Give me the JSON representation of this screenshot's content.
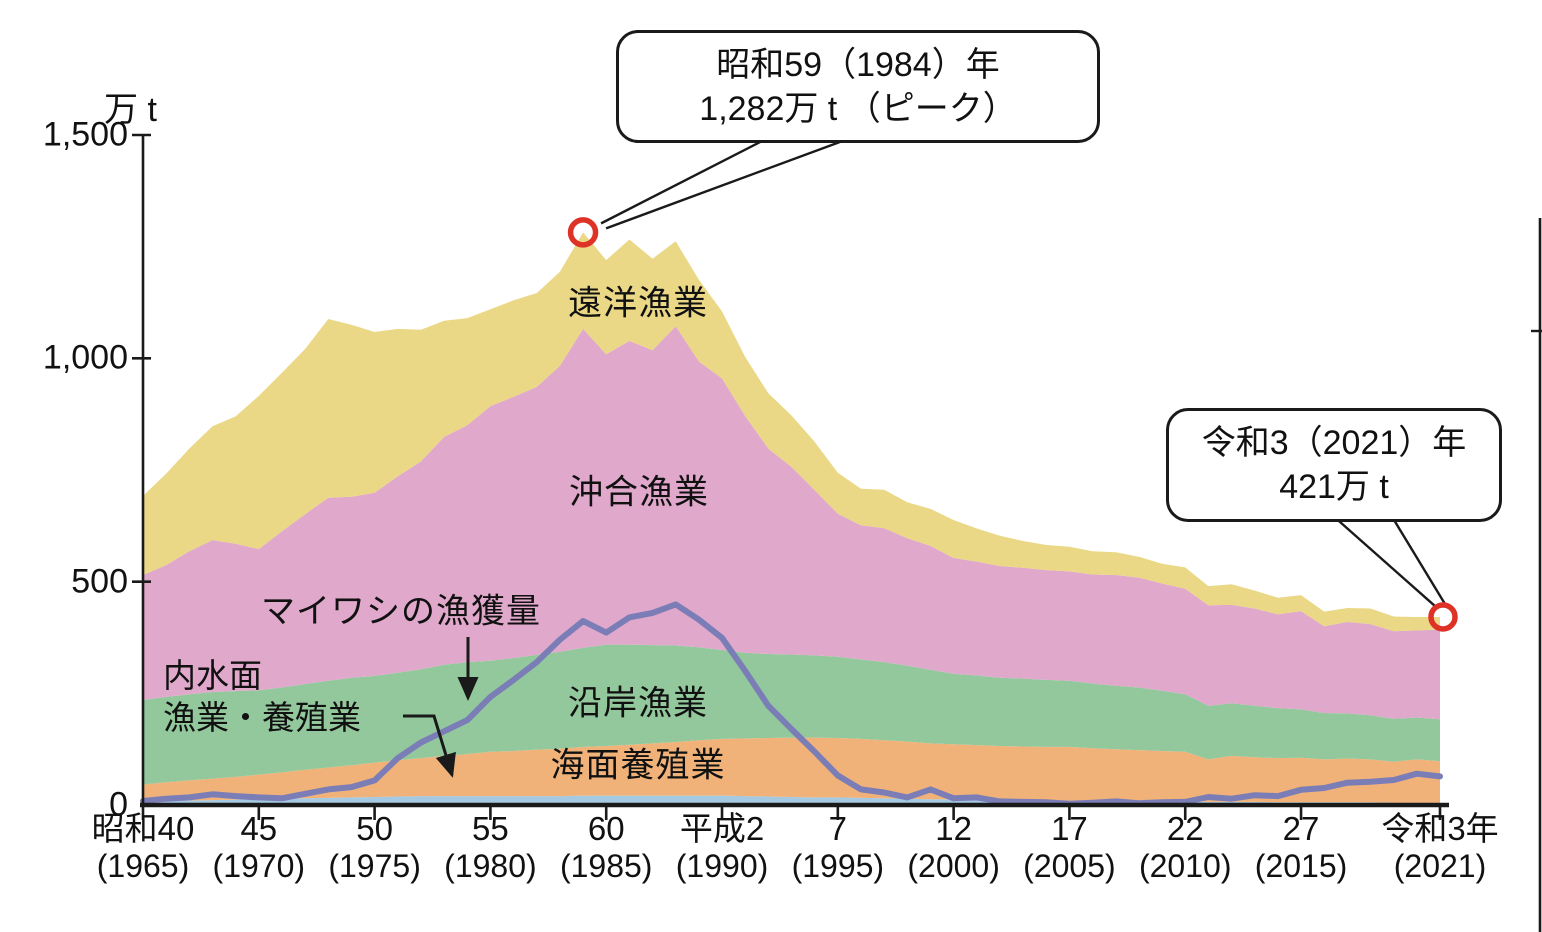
{
  "chart_data": {
    "type": "area",
    "stacked": true,
    "title": "",
    "unit_label": "万 t",
    "ylim": [
      0,
      1500
    ],
    "grid": false,
    "x": [
      1965,
      1966,
      1967,
      1968,
      1969,
      1970,
      1971,
      1972,
      1973,
      1974,
      1975,
      1976,
      1977,
      1978,
      1979,
      1980,
      1981,
      1982,
      1983,
      1984,
      1985,
      1986,
      1987,
      1988,
      1989,
      1990,
      1991,
      1992,
      1993,
      1994,
      1995,
      1996,
      1997,
      1998,
      1999,
      2000,
      2001,
      2002,
      2003,
      2004,
      2005,
      2006,
      2007,
      2008,
      2009,
      2010,
      2011,
      2012,
      2013,
      2014,
      2015,
      2016,
      2017,
      2018,
      2019,
      2020,
      2021
    ],
    "series": [
      {
        "id": "inland",
        "name": "内水面漁業・養殖業",
        "color": "#a5c9e0",
        "values": [
          8,
          9,
          10,
          11,
          12,
          13,
          14,
          15,
          16,
          17,
          18,
          19,
          20,
          20,
          20,
          20,
          20,
          20,
          20,
          21,
          21,
          21,
          21,
          21,
          21,
          21,
          20,
          19,
          18,
          17,
          17,
          16,
          15,
          14,
          13,
          13,
          12,
          11,
          11,
          10,
          10,
          9,
          9,
          8,
          8,
          8,
          7,
          7,
          7,
          6,
          6,
          6,
          6,
          6,
          5,
          5,
          5
        ]
      },
      {
        "id": "mariculture",
        "name": "海面養殖業",
        "color": "#f0b279",
        "values": [
          38,
          42,
          45,
          48,
          51,
          55,
          59,
          64,
          68,
          72,
          77,
          81,
          85,
          90,
          94,
          99,
          101,
          104,
          106,
          109,
          111,
          114,
          117,
          120,
          124,
          127,
          129,
          131,
          133,
          134,
          133,
          132,
          130,
          128,
          125,
          123,
          122,
          121,
          120,
          120,
          120,
          118,
          116,
          115,
          113,
          111,
          95,
          103,
          100,
          99,
          100,
          96,
          98,
          96,
          92,
          97,
          93
        ]
      },
      {
        "id": "coastal",
        "name": "沿岸漁業",
        "color": "#93c89d",
        "values": [
          189,
          191,
          193,
          194,
          192,
          189,
          190,
          192,
          194,
          196,
          194,
          196,
          199,
          204,
          206,
          204,
          208,
          212,
          217,
          222,
          227,
          224,
          220,
          216,
          208,
          199,
          192,
          188,
          186,
          184,
          182,
          178,
          175,
          170,
          165,
          158,
          156,
          153,
          152,
          150,
          148,
          145,
          142,
          140,
          135,
          129,
          120,
          118,
          115,
          112,
          108,
          104,
          101,
          99,
          96,
          94,
          94
        ]
      },
      {
        "id": "offshore",
        "name": "沖合漁業",
        "color": "#e0a8cb",
        "values": [
          280,
          295,
          320,
          340,
          330,
          316,
          350,
          380,
          410,
          405,
          410,
          440,
          465,
          510,
          530,
          570,
          585,
          600,
          640,
          714,
          650,
          680,
          660,
          715,
          640,
          608,
          530,
          460,
          420,
          370,
          320,
          300,
          300,
          285,
          277,
          259,
          255,
          250,
          248,
          246,
          245,
          244,
          248,
          246,
          240,
          236,
          225,
          220,
          218,
          210,
          220,
          194,
          205,
          204,
          196,
          195,
          201
        ]
      },
      {
        "id": "distant",
        "name": "遠洋漁業",
        "color": "#ead886",
        "values": [
          177,
          205,
          230,
          255,
          285,
          343,
          355,
          370,
          400,
          385,
          360,
          330,
          295,
          260,
          240,
          217,
          216,
          210,
          211,
          216,
          211,
          227,
          205,
          190,
          183,
          150,
          132,
          124,
          115,
          108,
          92,
          82,
          86,
          81,
          83,
          85,
          74,
          68,
          60,
          56,
          55,
          52,
          51,
          47,
          44,
          48,
          43,
          46,
          40,
          37,
          36,
          33,
          31,
          35,
          33,
          30,
          28
        ]
      }
    ],
    "line_series": {
      "id": "sardine",
      "name": "マイワシの漁獲量",
      "color": "#7b7db7",
      "values": [
        9,
        14,
        17,
        24,
        20,
        17,
        15,
        25,
        35,
        40,
        55,
        105,
        140,
        165,
        190,
        242,
        280,
        320,
        370,
        412,
        386,
        420,
        430,
        449,
        415,
        374,
        300,
        222,
        170,
        119,
        66,
        35,
        28,
        17,
        35,
        15,
        17,
        8,
        7,
        6,
        3,
        5,
        8,
        4,
        6,
        7,
        18,
        14,
        22,
        20,
        34,
        38,
        50,
        52,
        56,
        70,
        64
      ]
    },
    "y_ticks": [
      {
        "value": 0,
        "label": "0"
      },
      {
        "value": 500,
        "label": "500"
      },
      {
        "value": 1000,
        "label": "1,000"
      },
      {
        "value": 1500,
        "label": "1,500"
      }
    ],
    "x_ticks": [
      {
        "year": 1965,
        "era": "昭和40",
        "west": "(1965)"
      },
      {
        "year": 1970,
        "era": "45",
        "west": "(1970)"
      },
      {
        "year": 1975,
        "era": "50",
        "west": "(1975)"
      },
      {
        "year": 1980,
        "era": "55",
        "west": "(1980)"
      },
      {
        "year": 1985,
        "era": "60",
        "west": "(1985)"
      },
      {
        "year": 1990,
        "era": "平成2",
        "west": "(1990)"
      },
      {
        "year": 1995,
        "era": "7",
        "west": "(1995)"
      },
      {
        "year": 2000,
        "era": "12",
        "west": "(2000)"
      },
      {
        "year": 2005,
        "era": "17",
        "west": "(2005)"
      },
      {
        "year": 2010,
        "era": "22",
        "west": "(2010)"
      },
      {
        "year": 2015,
        "era": "27",
        "west": "(2015)"
      },
      {
        "year": 2021,
        "era": "令和3年",
        "west": "(2021)"
      }
    ]
  },
  "labels": {
    "inland_line1": "内水面",
    "inland_line2": "漁業・養殖業"
  },
  "annotations": {
    "peak": {
      "line1": "昭和59（1984）年",
      "line2": "1,282万 t （ピーク）",
      "year": 1984,
      "value": 1282
    },
    "latest": {
      "line1": "令和3（2021）年",
      "line2": "421万 t",
      "year": 2021,
      "value": 421
    }
  },
  "colors": {
    "axis": "#1a1a1a",
    "marker_circle": "#de3227",
    "background": "#ffffff"
  }
}
